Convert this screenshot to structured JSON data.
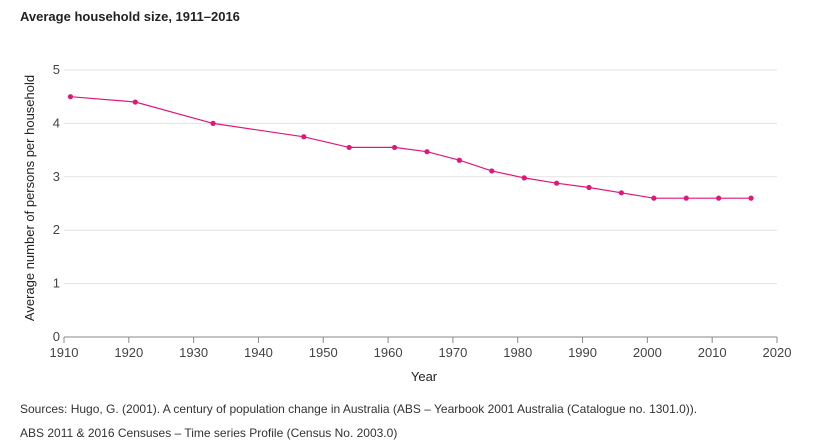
{
  "page": {
    "title": "Average household size, 1911–2016"
  },
  "chart_data": {
    "type": "line",
    "title": "Average household size, 1911–2016",
    "xlabel": "Year",
    "ylabel": "Average number of persons per household",
    "xlim": [
      1910,
      2020
    ],
    "ylim": [
      0,
      5
    ],
    "xticks": [
      1910,
      1920,
      1930,
      1940,
      1950,
      1960,
      1970,
      1980,
      1990,
      2000,
      2010,
      2020
    ],
    "yticks": [
      0,
      1,
      2,
      3,
      4,
      5
    ],
    "grid": true,
    "series": [
      {
        "name": "Average household size",
        "color": "#e0177a",
        "x": [
          1911,
          1921,
          1933,
          1947,
          1954,
          1961,
          1966,
          1971,
          1976,
          1981,
          1986,
          1991,
          1996,
          2001,
          2006,
          2011,
          2016
        ],
        "y": [
          4.5,
          4.4,
          4.0,
          3.75,
          3.55,
          3.55,
          3.47,
          3.31,
          3.11,
          2.98,
          2.88,
          2.8,
          2.7,
          2.6,
          2.6,
          2.6,
          2.6
        ]
      }
    ]
  },
  "sources": {
    "line1": "Sources: Hugo, G. (2001). A century of population change in Australia (ABS – Yearbook 2001 Australia (Catalogue no. 1301.0)).",
    "line2": "ABS 2011 & 2016 Censuses – Time series Profile (Census No. 2003.0)"
  }
}
